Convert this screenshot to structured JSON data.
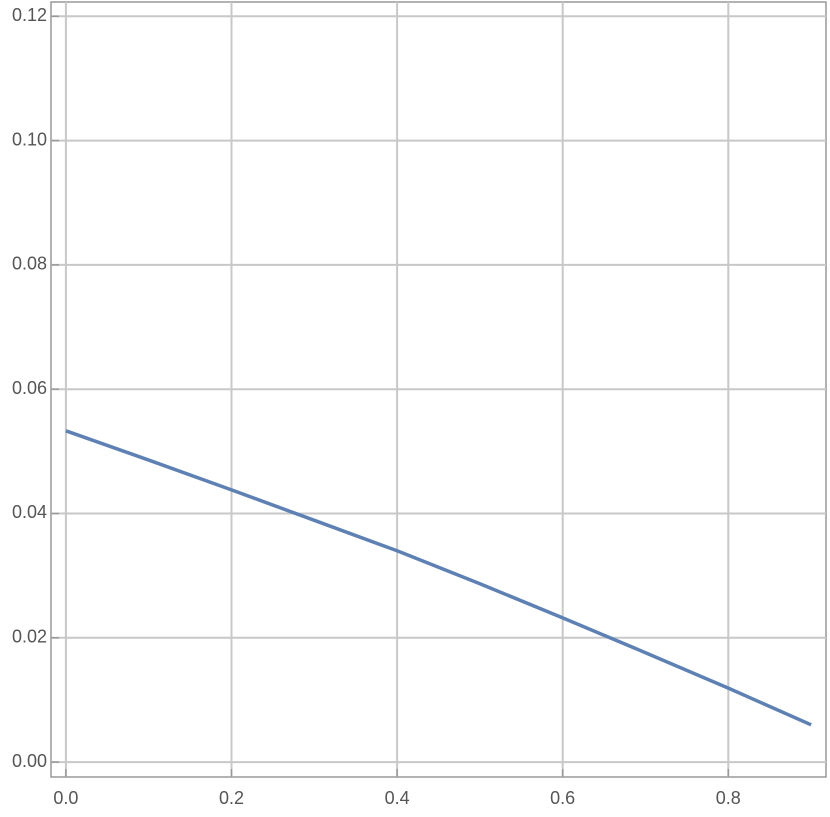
{
  "chart_data": {
    "type": "line",
    "x": [
      0,
      0.1,
      0.2,
      0.3,
      0.4,
      0.5,
      0.6,
      0.7,
      0.8,
      0.9
    ],
    "series": [
      {
        "color": "#5e81b5",
        "values": [
          0.0533,
          0.0486,
          0.0438,
          0.0389,
          0.034,
          0.0287,
          0.0232,
          0.0176,
          0.0119,
          0.006
        ]
      }
    ],
    "xlim": [
      -0.018,
      0.918
    ],
    "ylim": [
      -0.0024,
      0.1223
    ],
    "xticks": [
      {
        "value": 0,
        "label": "0.0"
      },
      0.2,
      0.4,
      0.6,
      0.8
    ],
    "yticks": [
      {
        "value": 0,
        "label": "0.00"
      },
      0.02,
      0.04,
      0.06,
      0.08,
      {
        "value": 0.1,
        "label": "0.10"
      },
      0.12
    ],
    "grid": true
  }
}
